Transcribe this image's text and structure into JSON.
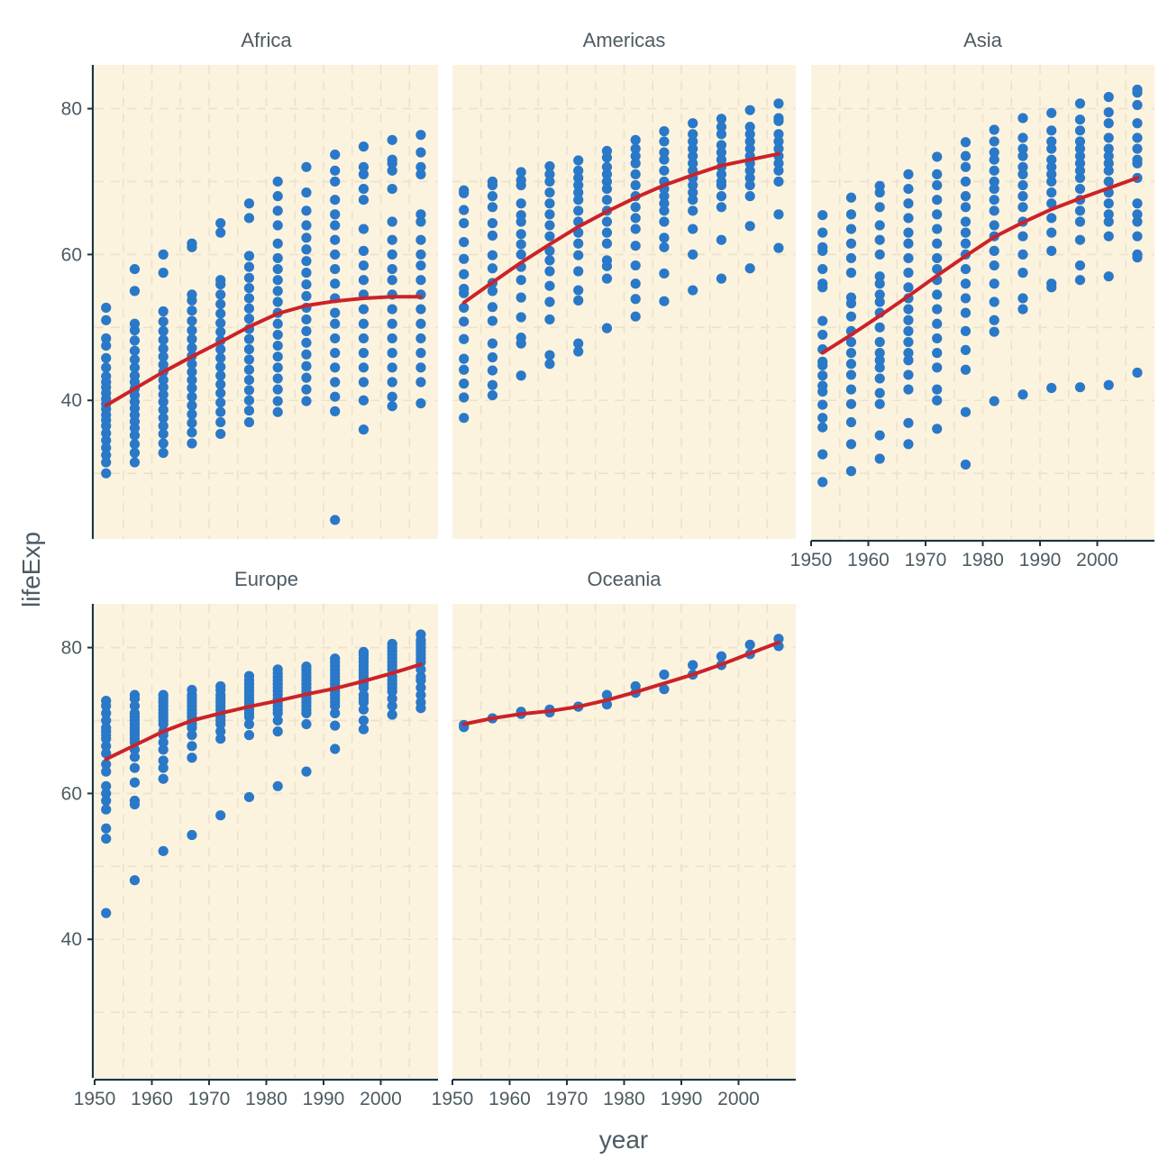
{
  "chart_data": {
    "type": "scatter",
    "xlabel": "year",
    "ylabel": "lifeExp",
    "xlim": [
      1950,
      2010
    ],
    "ylim": [
      21,
      86
    ],
    "x_ticks": [
      1950,
      1960,
      1970,
      1980,
      1990,
      2000
    ],
    "y_ticks": [
      40,
      60,
      80
    ],
    "years": [
      1952,
      1957,
      1962,
      1967,
      1972,
      1977,
      1982,
      1987,
      1992,
      1997,
      2002,
      2007
    ],
    "colors": {
      "panel_background": "#fbf3de",
      "grid": "#ece2cc",
      "points": "#2a78c8",
      "smooth_line": "#cc2229",
      "axis_line": "#1d3640",
      "text": "#4d5b63"
    },
    "panels": [
      {
        "name": "Africa",
        "points": [
          [
            30.0,
            31.5,
            32.5,
            33.5,
            34.5,
            35.5,
            36.5,
            37.3,
            38.0,
            38.8,
            39.5,
            40.2,
            41.0,
            41.8,
            42.5,
            43.3,
            44.5,
            45.8,
            47.5,
            48.5,
            51.0,
            52.7
          ],
          [
            31.5,
            32.8,
            34.0,
            35.2,
            36.2,
            37.1,
            38.0,
            38.9,
            39.8,
            40.7,
            41.6,
            42.5,
            43.4,
            44.5,
            45.6,
            46.8,
            48.2,
            49.6,
            50.5,
            55.0,
            58.0
          ],
          [
            32.8,
            34.1,
            35.4,
            36.5,
            37.6,
            38.7,
            39.8,
            40.8,
            41.8,
            42.8,
            43.9,
            44.9,
            46.0,
            47.1,
            48.3,
            49.5,
            50.8,
            52.2,
            57.5,
            60.0
          ],
          [
            34.1,
            35.6,
            36.9,
            38.1,
            39.3,
            40.5,
            41.7,
            42.8,
            43.9,
            45.0,
            46.1,
            47.2,
            48.4,
            49.6,
            50.9,
            52.3,
            53.7,
            54.5,
            61.0,
            61.5
          ],
          [
            35.4,
            37.0,
            38.4,
            39.7,
            41.0,
            42.2,
            43.4,
            44.6,
            45.8,
            47.0,
            48.2,
            49.4,
            50.6,
            51.9,
            53.2,
            54.5,
            55.9,
            56.5,
            63.0,
            64.3
          ],
          [
            37.0,
            38.6,
            40.0,
            41.4,
            42.8,
            44.2,
            45.6,
            47.0,
            48.4,
            49.8,
            51.2,
            52.6,
            54.0,
            55.4,
            56.8,
            58.3,
            59.8,
            65.0,
            67.0
          ],
          [
            38.4,
            39.9,
            41.5,
            43.0,
            44.5,
            46.0,
            47.5,
            49.0,
            50.5,
            52.0,
            53.5,
            55.0,
            56.5,
            58.0,
            59.5,
            61.5,
            64.0,
            66.0,
            68.0,
            70.0
          ],
          [
            39.9,
            41.5,
            43.1,
            44.7,
            46.3,
            47.9,
            49.5,
            51.1,
            52.7,
            54.3,
            55.9,
            57.5,
            59.1,
            60.7,
            62.3,
            64.0,
            66.0,
            68.5,
            72.0
          ],
          [
            23.6,
            38.5,
            40.5,
            42.5,
            44.5,
            46.5,
            48.5,
            50.5,
            52.0,
            54.0,
            56.0,
            58.0,
            60.0,
            62.0,
            64.0,
            65.5,
            67.5,
            70.0,
            71.5,
            73.7
          ],
          [
            36.0,
            40.0,
            42.5,
            44.5,
            46.5,
            48.5,
            50.5,
            52.5,
            54.5,
            56.5,
            58.5,
            60.5,
            63.5,
            67.5,
            69.0,
            71.0,
            72.0,
            74.8
          ],
          [
            39.2,
            40.5,
            42.5,
            44.5,
            46.5,
            48.5,
            50.5,
            52.5,
            54.5,
            56.5,
            58.0,
            60.0,
            62.0,
            64.5,
            69.0,
            71.5,
            72.5,
            73.0,
            75.7
          ],
          [
            39.6,
            42.5,
            44.5,
            46.5,
            48.5,
            50.5,
            52.5,
            54.5,
            56.5,
            58.5,
            60.0,
            62.0,
            64.5,
            65.5,
            71.0,
            72.0,
            74.0,
            76.4
          ]
        ],
        "smooth": [
          39.3,
          41.6,
          43.9,
          46.0,
          48.0,
          50.1,
          51.9,
          53.0,
          53.6,
          54.0,
          54.2,
          54.2
        ]
      },
      {
        "name": "Americas",
        "points": [
          [
            37.6,
            40.4,
            42.3,
            44.2,
            45.7,
            48.4,
            50.8,
            52.7,
            54.7,
            55.3,
            57.3,
            59.4,
            61.7,
            64.3,
            66.1,
            68.4,
            68.8
          ],
          [
            40.7,
            42.1,
            44.1,
            45.9,
            47.8,
            50.9,
            52.8,
            55.0,
            56.1,
            58.1,
            59.9,
            62.6,
            64.3,
            66.5,
            68.0,
            69.5,
            70.0
          ],
          [
            43.4,
            47.8,
            48.6,
            51.4,
            54.1,
            56.5,
            58.3,
            60.0,
            61.4,
            62.8,
            64.5,
            65.4,
            67.0,
            69.5,
            70.2,
            71.3
          ],
          [
            45.0,
            46.2,
            51.1,
            53.5,
            55.7,
            57.7,
            59.2,
            60.5,
            62.5,
            64.0,
            65.5,
            67.0,
            68.5,
            70.0,
            71.0,
            72.1
          ],
          [
            46.7,
            47.8,
            53.7,
            55.1,
            57.7,
            59.9,
            61.5,
            63.0,
            64.5,
            66.0,
            67.5,
            68.5,
            69.5,
            70.5,
            71.5,
            72.9
          ],
          [
            49.9,
            56.7,
            58.4,
            59.2,
            61.5,
            63.0,
            64.5,
            66.0,
            67.5,
            69.0,
            70.0,
            71.0,
            72.0,
            73.3,
            74.2
          ],
          [
            51.5,
            53.9,
            56.0,
            58.5,
            61.2,
            63.5,
            65.0,
            66.5,
            68.0,
            69.5,
            71.0,
            72.5,
            73.5,
            74.5,
            75.7
          ],
          [
            53.6,
            57.4,
            61.0,
            62.3,
            64.5,
            66.0,
            67.0,
            68.0,
            69.0,
            70.0,
            71.5,
            73.0,
            74.0,
            75.5,
            76.9
          ],
          [
            55.1,
            60.0,
            63.5,
            66.0,
            67.5,
            68.5,
            69.5,
            70.5,
            71.5,
            72.5,
            73.5,
            74.5,
            75.5,
            76.5,
            78.0
          ],
          [
            56.7,
            62.0,
            66.5,
            68.0,
            69.5,
            70.0,
            71.0,
            72.0,
            73.0,
            74.0,
            75.0,
            76.5,
            77.5,
            78.6
          ],
          [
            58.1,
            63.9,
            68.0,
            69.5,
            70.5,
            71.5,
            72.5,
            73.5,
            74.5,
            75.5,
            76.5,
            77.5,
            79.8
          ],
          [
            60.9,
            65.5,
            70.0,
            71.5,
            72.5,
            73.5,
            74.5,
            75.5,
            76.5,
            78.3,
            78.7,
            80.7
          ]
        ],
        "smooth": [
          53.4,
          56.2,
          58.9,
          61.4,
          63.8,
          65.9,
          67.8,
          69.5,
          70.9,
          72.2,
          73.0,
          73.8
        ]
      },
      {
        "name": "Asia",
        "points": [
          [
            28.8,
            32.6,
            36.3,
            37.6,
            39.4,
            41.2,
            42.0,
            43.4,
            44.8,
            45.3,
            47.0,
            49.0,
            50.9,
            55.5,
            56.0,
            58.0,
            60.5,
            61.0,
            63.0,
            65.4
          ],
          [
            30.3,
            34.0,
            37.0,
            39.5,
            41.5,
            43.5,
            45.0,
            46.5,
            48.0,
            49.5,
            51.5,
            53.3,
            54.1,
            57.5,
            59.5,
            61.5,
            63.5,
            65.5,
            67.8
          ],
          [
            32.0,
            35.2,
            39.5,
            41.0,
            43.0,
            44.5,
            45.5,
            46.5,
            48.0,
            50.0,
            52.0,
            53.5,
            54.5,
            56.0,
            57.0,
            60.0,
            62.0,
            64.0,
            66.5,
            68.5,
            69.4
          ],
          [
            34.0,
            36.9,
            41.5,
            43.5,
            45.5,
            46.5,
            48.0,
            49.5,
            51.0,
            52.5,
            54.0,
            55.5,
            57.5,
            59.5,
            61.5,
            63.0,
            65.0,
            67.0,
            69.0,
            71.0
          ],
          [
            36.1,
            40.0,
            41.5,
            44.5,
            46.5,
            48.5,
            50.5,
            52.5,
            54.5,
            56.5,
            58.0,
            59.5,
            61.5,
            63.5,
            65.5,
            67.5,
            69.5,
            71.0,
            73.4
          ],
          [
            31.2,
            38.4,
            44.2,
            46.9,
            49.5,
            52.0,
            54.0,
            56.0,
            58.0,
            60.0,
            61.5,
            63.0,
            64.5,
            66.5,
            68.0,
            70.0,
            72.0,
            73.5,
            75.4
          ],
          [
            39.9,
            49.4,
            51.0,
            53.5,
            56.0,
            58.5,
            60.5,
            62.5,
            64.0,
            66.0,
            67.5,
            69.0,
            70.0,
            71.5,
            73.0,
            74.0,
            75.5,
            77.1
          ],
          [
            40.8,
            52.5,
            54.0,
            57.5,
            60.0,
            62.5,
            64.5,
            66.5,
            68.0,
            69.5,
            71.0,
            72.0,
            73.5,
            74.5,
            76.0,
            78.7
          ],
          [
            41.7,
            55.5,
            56.0,
            60.5,
            63.0,
            65.0,
            67.0,
            68.5,
            70.0,
            71.0,
            72.0,
            73.0,
            74.5,
            75.5,
            77.0,
            79.4
          ],
          [
            41.8,
            56.5,
            58.5,
            62.0,
            64.5,
            66.0,
            67.5,
            69.0,
            70.5,
            71.5,
            72.5,
            73.5,
            74.5,
            75.5,
            77.0,
            78.5,
            80.7
          ],
          [
            42.1,
            57.0,
            62.5,
            64.5,
            65.5,
            67.0,
            68.5,
            70.0,
            71.5,
            72.5,
            73.5,
            74.5,
            76.0,
            78.0,
            79.5,
            81.6
          ],
          [
            43.8,
            59.6,
            60.0,
            62.5,
            64.5,
            65.5,
            67.0,
            70.5,
            72.5,
            73.0,
            74.5,
            76.0,
            78.0,
            80.5,
            82.2,
            82.6
          ]
        ],
        "smooth": [
          46.5,
          49.0,
          51.6,
          54.3,
          57.1,
          59.8,
          62.4,
          64.4,
          66.2,
          67.7,
          69.1,
          70.5
        ]
      },
      {
        "name": "Europe",
        "points": [
          [
            43.6,
            53.8,
            55.2,
            57.8,
            59.0,
            60.0,
            61.0,
            63.0,
            64.0,
            65.5,
            66.5,
            67.5,
            68.0,
            68.5,
            69.0,
            70.0,
            71.0,
            72.0,
            72.7
          ],
          [
            48.1,
            58.5,
            59.0,
            61.5,
            63.5,
            65.0,
            66.0,
            67.0,
            67.5,
            68.0,
            68.5,
            69.0,
            69.5,
            70.0,
            70.5,
            71.0,
            72.0,
            73.0,
            73.5
          ],
          [
            52.1,
            62.0,
            63.5,
            64.5,
            66.0,
            67.0,
            68.0,
            68.5,
            69.5,
            70.0,
            70.5,
            71.0,
            71.5,
            72.0,
            72.5,
            73.0,
            73.5
          ],
          [
            54.3,
            64.9,
            66.5,
            68.0,
            69.0,
            69.5,
            70.0,
            70.5,
            71.0,
            71.5,
            72.0,
            72.5,
            73.0,
            73.5,
            74.2
          ],
          [
            57.0,
            67.5,
            68.5,
            69.5,
            70.0,
            70.5,
            71.0,
            71.5,
            72.0,
            72.5,
            73.0,
            73.5,
            74.2,
            74.7
          ],
          [
            59.5,
            68.0,
            69.5,
            70.5,
            71.0,
            71.5,
            72.0,
            72.5,
            73.0,
            73.5,
            74.0,
            74.5,
            75.0,
            75.5,
            76.1
          ],
          [
            61.0,
            68.5,
            70.0,
            71.0,
            71.5,
            72.0,
            72.5,
            73.0,
            73.5,
            74.0,
            74.5,
            75.0,
            75.5,
            76.0,
            76.5,
            77.0
          ],
          [
            63.0,
            69.5,
            71.0,
            71.5,
            72.0,
            72.5,
            73.0,
            73.5,
            74.0,
            74.5,
            75.0,
            75.5,
            76.0,
            76.5,
            77.0,
            77.4
          ],
          [
            66.1,
            69.3,
            71.0,
            72.0,
            72.5,
            73.0,
            73.5,
            74.0,
            74.5,
            75.0,
            75.5,
            76.0,
            76.5,
            77.0,
            77.5,
            78.0,
            78.5
          ],
          [
            68.8,
            70.0,
            71.5,
            72.5,
            73.0,
            73.5,
            74.5,
            75.0,
            75.5,
            76.0,
            76.5,
            77.0,
            77.5,
            78.0,
            78.5,
            79.0,
            79.4
          ],
          [
            70.8,
            72.0,
            73.0,
            74.0,
            74.5,
            75.0,
            75.5,
            76.0,
            77.0,
            77.5,
            78.0,
            78.5,
            79.0,
            79.5,
            80.0,
            80.5
          ],
          [
            71.7,
            72.5,
            73.5,
            74.5,
            75.5,
            76.0,
            77.0,
            78.0,
            78.5,
            79.0,
            79.5,
            80.0,
            80.5,
            81.0,
            81.8
          ]
        ],
        "smooth": [
          64.7,
          66.6,
          68.5,
          70.0,
          71.0,
          71.9,
          72.7,
          73.6,
          74.4,
          75.4,
          76.5,
          77.7
        ]
      },
      {
        "name": "Oceania",
        "points": [
          [
            69.1,
            69.4
          ],
          [
            70.3,
            70.3
          ],
          [
            70.9,
            71.2
          ],
          [
            71.1,
            71.5
          ],
          [
            71.9,
            71.9
          ],
          [
            72.2,
            73.5
          ],
          [
            73.8,
            74.7
          ],
          [
            74.3,
            76.3
          ],
          [
            76.3,
            77.6
          ],
          [
            77.6,
            78.8
          ],
          [
            79.1,
            80.4
          ],
          [
            80.2,
            81.2
          ]
        ],
        "smooth": [
          69.5,
          70.3,
          70.9,
          71.3,
          71.9,
          72.8,
          73.9,
          75.1,
          76.3,
          77.7,
          79.2,
          80.7
        ]
      }
    ]
  }
}
